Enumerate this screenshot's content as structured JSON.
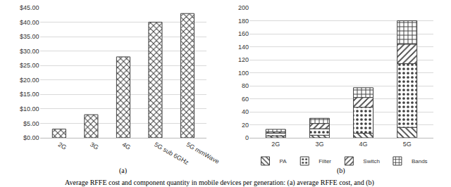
{
  "caption": "Average RFFE cost and component quantity in mobile devices per generation: (a) average RFFE cost, and (b)",
  "chart_data": [
    {
      "type": "bar",
      "subtitle": "(a)",
      "categories": [
        "2G",
        "3G",
        "4G",
        "5G sub 6GHz",
        "5G mmWave"
      ],
      "values": [
        3,
        8,
        28,
        40,
        43
      ],
      "color": "#404040",
      "ylim": [
        0,
        45
      ],
      "yticks": [
        {
          "value": 0,
          "label": "$0.00"
        },
        {
          "value": 5,
          "label": "$5.00"
        },
        {
          "value": 10,
          "label": "$10.00"
        },
        {
          "value": 15,
          "label": "$15.00"
        },
        {
          "value": 20,
          "label": "$20.00"
        },
        {
          "value": 25,
          "label": "$25.00"
        },
        {
          "value": 30,
          "label": "$30.00"
        },
        {
          "value": 35,
          "label": "$35.00"
        },
        {
          "value": 40,
          "label": "$40.00"
        },
        {
          "value": 45,
          "label": "$45.00"
        }
      ],
      "grid": true
    },
    {
      "type": "bar",
      "subtitle": "(b)",
      "stacked": true,
      "legend": "bottom",
      "categories": [
        "2G",
        "3G",
        "4G",
        "5G"
      ],
      "series": [
        {
          "name": "PA",
          "color": "#404040",
          "values": [
            3,
            4,
            7,
            16
          ]
        },
        {
          "name": "Filter",
          "color": "#404040",
          "values": [
            4,
            10,
            40,
            98
          ]
        },
        {
          "name": "Switch",
          "color": "#404040",
          "values": [
            2,
            8,
            15,
            30
          ]
        },
        {
          "name": "Bands",
          "color": "#404040",
          "values": [
            4,
            8,
            15,
            36
          ]
        }
      ],
      "ylim": [
        0,
        200
      ],
      "yticks": [
        0,
        20,
        40,
        60,
        80,
        100,
        120,
        140,
        160,
        180,
        200
      ],
      "grid": true
    }
  ]
}
